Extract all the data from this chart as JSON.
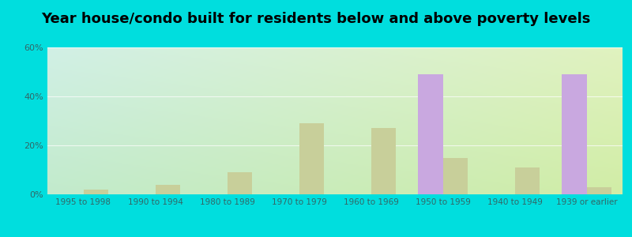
{
  "title": "Year house/condo built for residents below and above poverty levels",
  "categories": [
    "1995 to 1998",
    "1990 to 1994",
    "1980 to 1989",
    "1970 to 1979",
    "1960 to 1969",
    "1950 to 1959",
    "1940 to 1949",
    "1939 or earlier"
  ],
  "below_poverty": [
    0,
    0,
    0,
    0,
    0,
    49,
    0,
    49
  ],
  "above_poverty": [
    2,
    4,
    9,
    29,
    27,
    15,
    11,
    3
  ],
  "below_color": "#c9a8e0",
  "above_color": "#c8cf9a",
  "ylim": [
    0,
    60
  ],
  "yticks": [
    0,
    20,
    40,
    60
  ],
  "ytick_labels": [
    "0%",
    "20%",
    "40%",
    "60%"
  ],
  "title_fontsize": 13,
  "outer_bg": "#00dede",
  "grad_topleft": "#c8ede4",
  "grad_bottomright": "#e8f2d8"
}
